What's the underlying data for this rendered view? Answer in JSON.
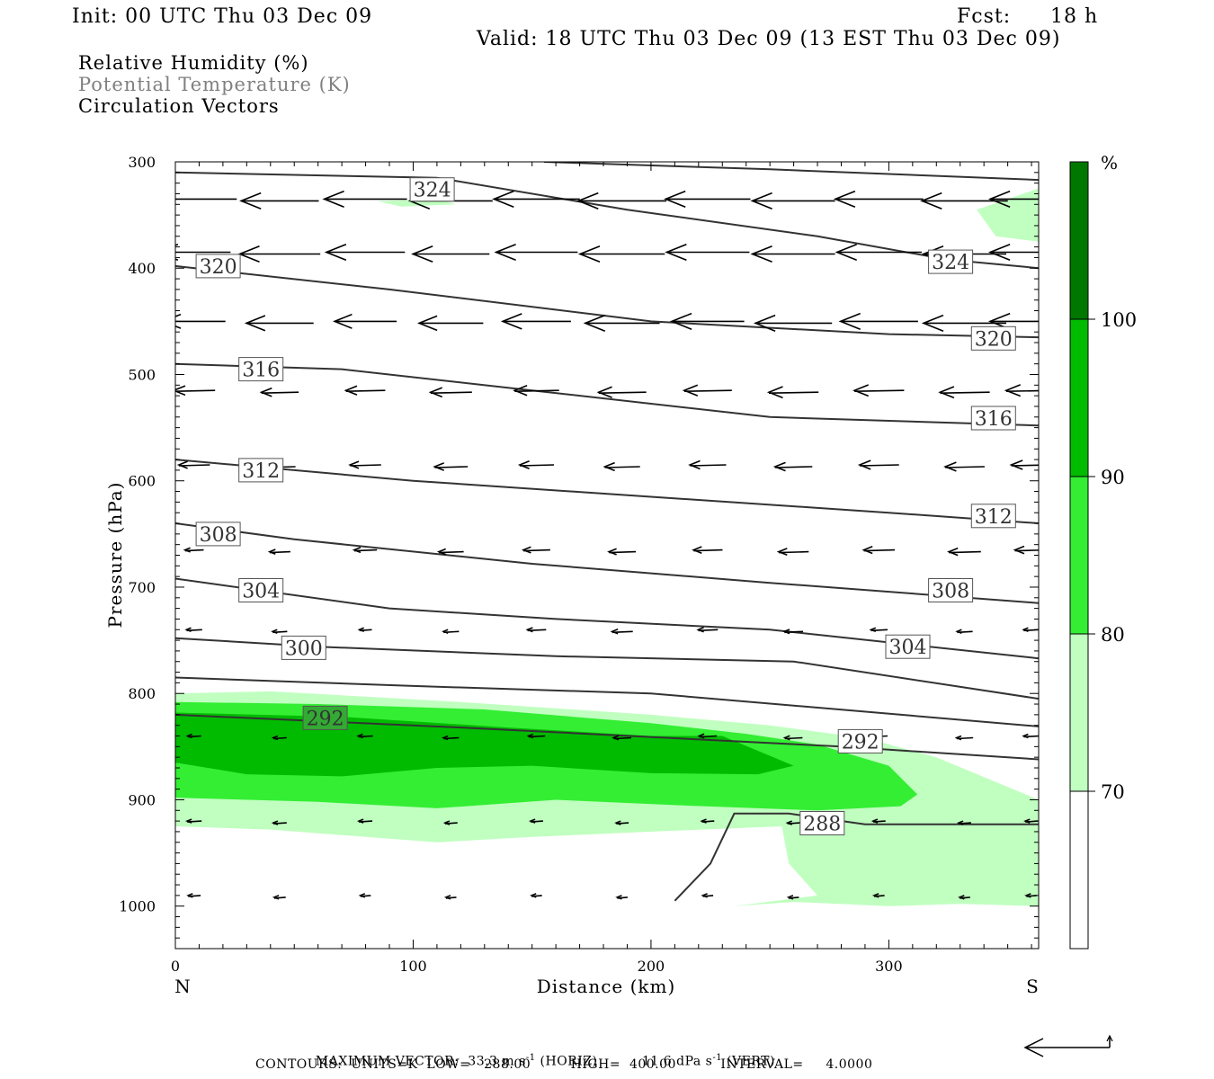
{
  "header": {
    "init": "Init: 00 UTC Thu 03 Dec 09",
    "fcst_label": "Fcst:",
    "fcst_value": "18 h",
    "valid": "Valid: 18 UTC Thu 03 Dec 09 (13 EST Thu 03 Dec 09)"
  },
  "fields": [
    {
      "label": "Relative Humidity (%)",
      "color": "#000000"
    },
    {
      "label": "Potential Temperature (K)",
      "color": "#808080"
    },
    {
      "label": "Circulation Vectors",
      "color": "#000000"
    }
  ],
  "chart_data": {
    "type": "cross-section",
    "xlabel": "Distance (km)",
    "ylabel": "Pressure (hPa)",
    "xlim": [
      0,
      363
    ],
    "ylim": [
      1040,
      300
    ],
    "y_scale": "linear",
    "x_ticks": [
      0,
      100,
      200,
      300
    ],
    "y_ticks": [
      300,
      400,
      500,
      600,
      700,
      800,
      900,
      1000
    ],
    "x_end_labels": {
      "left": "N",
      "right": "S"
    },
    "colorbar": {
      "unit": "%",
      "levels": [
        70,
        80,
        90,
        100
      ],
      "colors": [
        "#ffffff",
        "#c0ffc0",
        "#33ee33",
        "#00bb00",
        "#007800"
      ]
    },
    "rh_regions": [
      {
        "level": 70,
        "color": "#c0ffc0",
        "points": [
          [
            0,
            800
          ],
          [
            40,
            798
          ],
          [
            120,
            808
          ],
          [
            200,
            820
          ],
          [
            250,
            830
          ],
          [
            290,
            842
          ],
          [
            320,
            860
          ],
          [
            363,
            900
          ],
          [
            363,
            1000
          ],
          [
            330,
            998
          ],
          [
            300,
            1000
          ],
          [
            260,
            996
          ],
          [
            235,
            1000
          ],
          [
            270,
            990
          ],
          [
            258,
            960
          ],
          [
            255,
            925
          ],
          [
            200,
            930
          ],
          [
            150,
            935
          ],
          [
            110,
            940
          ],
          [
            40,
            928
          ],
          [
            0,
            925
          ]
        ]
      },
      {
        "level": 70,
        "color": "#c0ffc0",
        "points": [
          [
            337,
            345
          ],
          [
            363,
            325
          ],
          [
            363,
            375
          ],
          [
            345,
            370
          ]
        ]
      },
      {
        "level": 70,
        "color": "#c0ffc0",
        "points": [
          [
            85,
            337
          ],
          [
            110,
            335
          ],
          [
            118,
            340
          ],
          [
            95,
            342
          ]
        ]
      },
      {
        "level": 80,
        "color": "#33ee33",
        "points": [
          [
            0,
            808
          ],
          [
            60,
            810
          ],
          [
            130,
            815
          ],
          [
            200,
            828
          ],
          [
            240,
            838
          ],
          [
            270,
            848
          ],
          [
            300,
            868
          ],
          [
            312,
            895
          ],
          [
            305,
            906
          ],
          [
            270,
            910
          ],
          [
            245,
            908
          ],
          [
            210,
            905
          ],
          [
            160,
            900
          ],
          [
            110,
            908
          ],
          [
            60,
            902
          ],
          [
            0,
            898
          ]
        ]
      },
      {
        "level": 90,
        "color": "#00bb00",
        "points": [
          [
            0,
            818
          ],
          [
            70,
            822
          ],
          [
            140,
            832
          ],
          [
            200,
            840
          ],
          [
            230,
            840
          ],
          [
            260,
            868
          ],
          [
            245,
            876
          ],
          [
            200,
            875
          ],
          [
            150,
            868
          ],
          [
            110,
            870
          ],
          [
            70,
            878
          ],
          [
            30,
            876
          ],
          [
            0,
            865
          ]
        ]
      }
    ],
    "theta_contours": [
      {
        "value": 288,
        "points": [
          [
            210,
            995
          ],
          [
            225,
            960
          ],
          [
            235,
            913
          ],
          [
            258,
            913
          ],
          [
            290,
            923
          ],
          [
            363,
            923
          ]
        ],
        "labels": [
          [
            272,
            922
          ]
        ]
      },
      {
        "value": 292,
        "points": [
          [
            0,
            820
          ],
          [
            120,
            832
          ],
          [
            280,
            850
          ],
          [
            363,
            862
          ]
        ],
        "labels": [
          [
            63,
            823
          ],
          [
            288,
            845
          ]
        ]
      },
      {
        "value": 296,
        "points": [
          [
            0,
            785
          ],
          [
            100,
            793
          ],
          [
            200,
            800
          ],
          [
            363,
            831
          ]
        ],
        "labels": []
      },
      {
        "value": 300,
        "points": [
          [
            0,
            748
          ],
          [
            60,
            756
          ],
          [
            160,
            765
          ],
          [
            260,
            770
          ],
          [
            363,
            805
          ]
        ],
        "labels": [
          [
            54,
            757
          ]
        ]
      },
      {
        "value": 304,
        "points": [
          [
            0,
            692
          ],
          [
            90,
            720
          ],
          [
            160,
            730
          ],
          [
            250,
            740
          ],
          [
            363,
            767
          ]
        ],
        "labels": [
          [
            36,
            703
          ],
          [
            308,
            756
          ]
        ]
      },
      {
        "value": 308,
        "points": [
          [
            0,
            640
          ],
          [
            50,
            655
          ],
          [
            150,
            678
          ],
          [
            250,
            696
          ],
          [
            363,
            715
          ]
        ],
        "labels": [
          [
            18,
            650
          ],
          [
            326,
            703
          ]
        ]
      },
      {
        "value": 312,
        "points": [
          [
            0,
            580
          ],
          [
            100,
            600
          ],
          [
            200,
            615
          ],
          [
            300,
            630
          ],
          [
            363,
            640
          ]
        ],
        "labels": [
          [
            36,
            590
          ],
          [
            344,
            633
          ]
        ]
      },
      {
        "value": 316,
        "points": [
          [
            0,
            490
          ],
          [
            70,
            495
          ],
          [
            150,
            515
          ],
          [
            250,
            540
          ],
          [
            363,
            548
          ]
        ],
        "labels": [
          [
            36,
            495
          ],
          [
            344,
            541
          ]
        ]
      },
      {
        "value": 320,
        "points": [
          [
            0,
            398
          ],
          [
            90,
            420
          ],
          [
            200,
            450
          ],
          [
            300,
            462
          ],
          [
            363,
            465
          ]
        ],
        "labels": [
          [
            18,
            398
          ],
          [
            344,
            466
          ]
        ]
      },
      {
        "value": 324,
        "points": [
          [
            0,
            310
          ],
          [
            110,
            315
          ],
          [
            190,
            345
          ],
          [
            270,
            370
          ],
          [
            325,
            392
          ],
          [
            363,
            400
          ]
        ],
        "labels": [
          [
            108,
            326
          ],
          [
            326,
            394
          ]
        ]
      },
      {
        "value": 328,
        "points": [
          [
            155,
            300
          ],
          [
            250,
            307
          ],
          [
            363,
            317
          ]
        ],
        "labels": []
      }
    ],
    "vector_rows": [
      {
        "pressure": 335,
        "u": [
          -8.2,
          -7.5,
          -8.0,
          -8.0,
          -8.3,
          -8.5,
          -8.2,
          -8.0,
          -8.5,
          -8.3,
          -8.0,
          -8.0
        ]
      },
      {
        "pressure": 385,
        "u": [
          -7.0,
          -7.8,
          -7.6,
          -7.4,
          -7.9,
          -8.2,
          -8.0,
          -8.0,
          -8.2,
          -8.0,
          -8.0,
          -8.0
        ]
      },
      {
        "pressure": 450,
        "u": [
          -6.0,
          -6.5,
          -6.0,
          -6.2,
          -6.6,
          -7.2,
          -7.0,
          -7.4,
          -7.5,
          -8.0,
          -8.0,
          -8.2
        ]
      },
      {
        "pressure": 515,
        "u": [
          -4.0,
          -3.6,
          -3.8,
          -4.0,
          -4.3,
          -4.6,
          -4.6,
          -4.8,
          -4.8,
          -4.8,
          -4.9,
          -5.0
        ]
      },
      {
        "pressure": 585,
        "u": [
          -3.0,
          -3.0,
          -3.0,
          -3.2,
          -3.3,
          -3.4,
          -3.5,
          -3.6,
          -3.8,
          -3.8,
          -3.9,
          -4.0
        ]
      },
      {
        "pressure": 665,
        "u": [
          -1.8,
          -2.0,
          -2.2,
          -2.4,
          -2.6,
          -2.6,
          -2.8,
          -2.9,
          -3.0,
          -3.1,
          -3.2,
          -3.4
        ]
      },
      {
        "pressure": 740,
        "u": [
          -1.5,
          -1.4,
          -1.2,
          -1.5,
          -1.8,
          -2.0,
          -1.9,
          -1.8,
          -1.6,
          -1.5,
          -1.5,
          -1.4
        ]
      },
      {
        "pressure": 840,
        "u": [
          -1.3,
          -1.3,
          -1.4,
          -1.5,
          -1.6,
          -1.7,
          -1.7,
          -1.7,
          -1.6,
          -1.6,
          -1.5,
          -1.5
        ]
      },
      {
        "pressure": 920,
        "u": [
          -1.4,
          -1.3,
          -1.3,
          -1.2,
          -1.2,
          -1.2,
          -1.2,
          -1.2,
          -1.2,
          -1.2,
          -1.2,
          -1.2
        ]
      },
      {
        "pressure": 990,
        "u": [
          -1.2,
          -1.1,
          -1.0,
          -1.0,
          -1.0,
          -1.0,
          -1.0,
          -1.0,
          -1.0,
          -1.0,
          -1.0,
          -1.0
        ]
      }
    ],
    "vector_x": [
      8,
      44,
      80,
      116,
      152,
      188,
      224,
      260,
      296,
      332,
      360,
      360
    ]
  },
  "footer": {
    "max_vector_label": "MAXIMUM VECTOR:",
    "max_vector_horiz": "33.3 m s",
    "horiz_tag": "(HORIZ)",
    "max_vector_vert": "11.6 dPa s",
    "vert_tag": "(VERT)",
    "exponent": "-1",
    "contours": "CONTOURS:  UNITS=K  LOW=   288.00         HIGH=  400.00          INTERVAL=     4.0000"
  }
}
